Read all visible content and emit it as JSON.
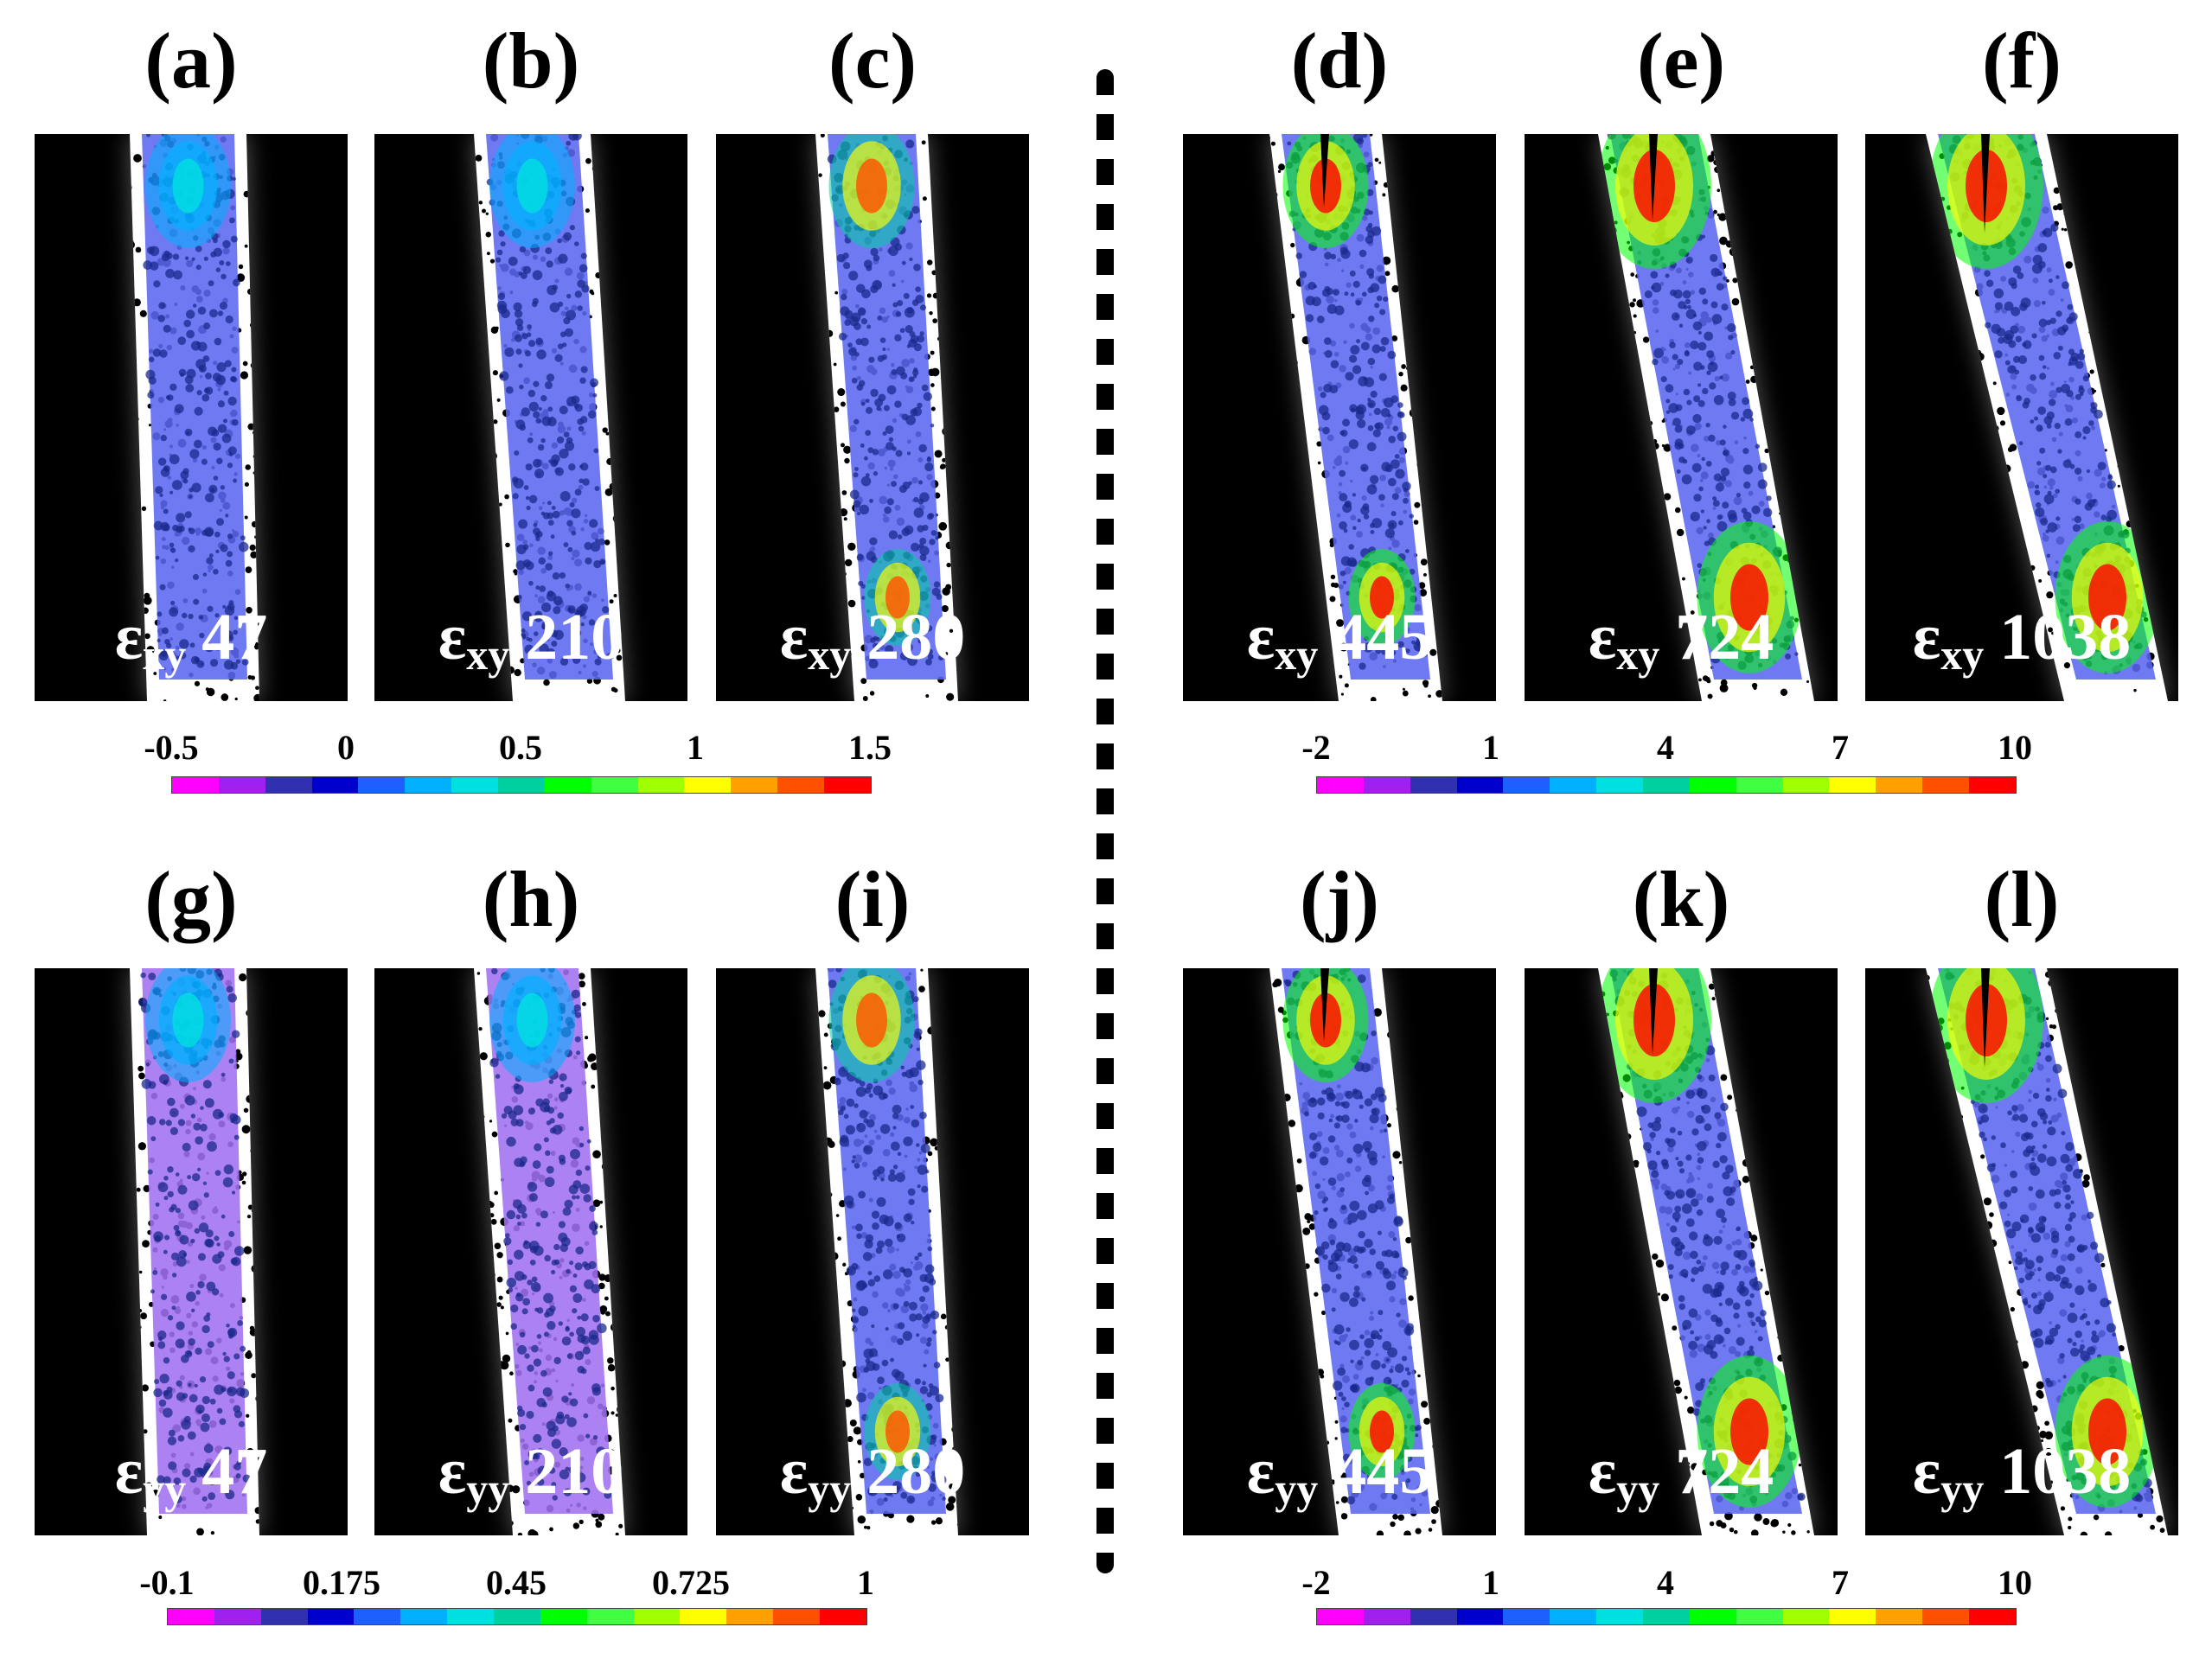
{
  "panels": [
    {
      "label": "(a)",
      "comp": "xy",
      "frame": "47",
      "stage": 0
    },
    {
      "label": "(b)",
      "comp": "xy",
      "frame": "210",
      "stage": 1
    },
    {
      "label": "(c)",
      "comp": "xy",
      "frame": "280",
      "stage": 2
    },
    {
      "label": "(d)",
      "comp": "xy",
      "frame": "445",
      "stage": 3
    },
    {
      "label": "(e)",
      "comp": "xy",
      "frame": "724",
      "stage": 4
    },
    {
      "label": "(f)",
      "comp": "xy",
      "frame": "1038",
      "stage": 5
    },
    {
      "label": "(g)",
      "comp": "yy",
      "frame": "47",
      "stage": 0
    },
    {
      "label": "(h)",
      "comp": "yy",
      "frame": "210",
      "stage": 1
    },
    {
      "label": "(i)",
      "comp": "yy",
      "frame": "280",
      "stage": 2
    },
    {
      "label": "(j)",
      "comp": "yy",
      "frame": "445",
      "stage": 3
    },
    {
      "label": "(k)",
      "comp": "yy",
      "frame": "724",
      "stage": 4
    },
    {
      "label": "(l)",
      "comp": "yy",
      "frame": "1038",
      "stage": 5
    }
  ],
  "strain_symbol": "ε",
  "colorbars": [
    {
      "id": "exy-left",
      "ticks": [
        "-0.5",
        "0",
        "0.5",
        "1",
        "1.5"
      ]
    },
    {
      "id": "exy-right",
      "ticks": [
        "-2",
        "1",
        "4",
        "7",
        "10"
      ]
    },
    {
      "id": "eyy-left",
      "ticks": [
        "-0.1",
        "0.175",
        "0.45",
        "0.725",
        "1"
      ]
    },
    {
      "id": "eyy-right",
      "ticks": [
        "-2",
        "1",
        "4",
        "7",
        "10"
      ]
    }
  ],
  "colormap": [
    "#ff00ff",
    "#a020f0",
    "#3030b0",
    "#0000cd",
    "#1e60ff",
    "#00b0ff",
    "#00e0e0",
    "#00d0a0",
    "#00ff00",
    "#40ff40",
    "#a0ff00",
    "#ffff00",
    "#ffa000",
    "#ff5000",
    "#ff0000"
  ],
  "colors": {
    "speckle_dark": "#000000",
    "speckle_light": "#ffffff",
    "overlay_base": "#5a66f0",
    "overlay_dark": "#1b2a8c",
    "background": "#000000"
  }
}
